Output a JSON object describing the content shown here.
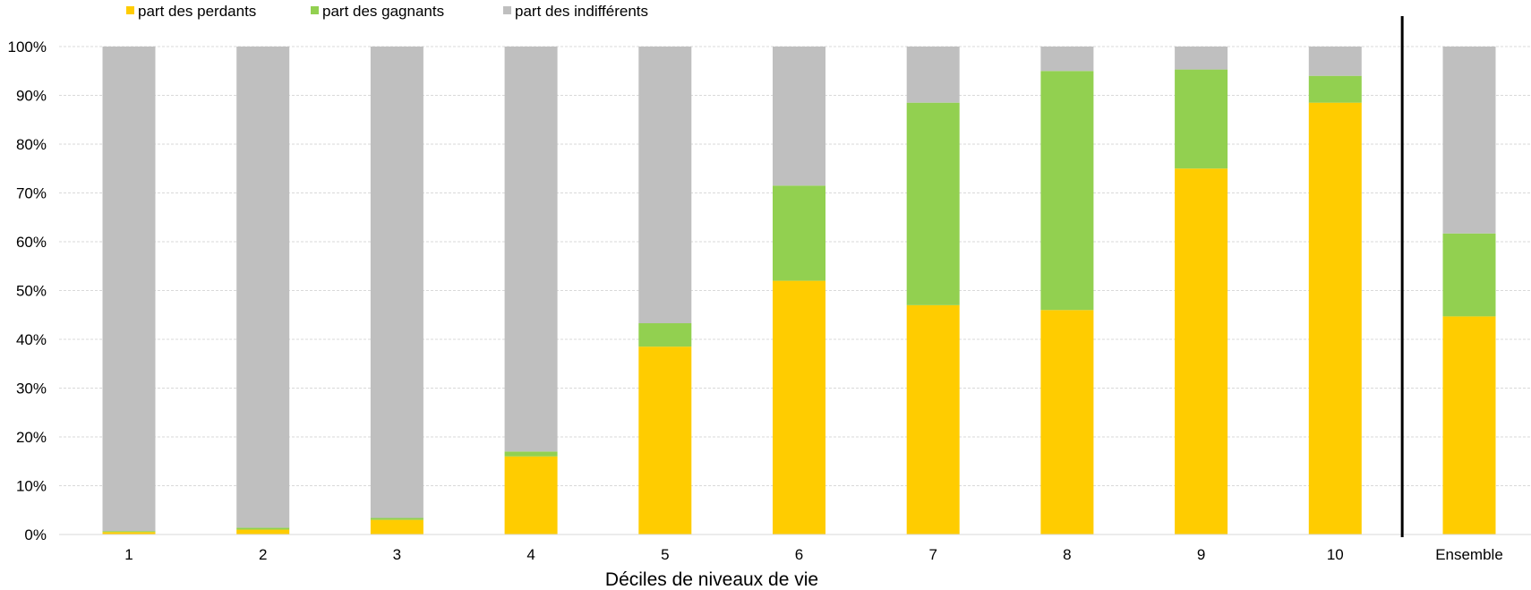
{
  "chart_data": {
    "type": "bar",
    "stacked": true,
    "categories": [
      "1",
      "2",
      "3",
      "4",
      "5",
      "6",
      "7",
      "8",
      "9",
      "10",
      "Ensemble"
    ],
    "series": [
      {
        "name": "part des perdants",
        "color": "#FFCC00",
        "values": [
          0.5,
          1.0,
          3.0,
          16.0,
          38.5,
          52.0,
          47.0,
          46.0,
          75.0,
          88.5,
          44.7
        ]
      },
      {
        "name": "part des gagnants",
        "color": "#92D050",
        "values": [
          0.2,
          0.4,
          0.4,
          1.0,
          4.8,
          19.5,
          41.5,
          49.0,
          20.3,
          5.5,
          17.0
        ]
      },
      {
        "name": "part des indifférents",
        "color": "#BFBFBF",
        "values": [
          99.3,
          98.6,
          96.6,
          83.0,
          56.7,
          28.5,
          11.5,
          5.0,
          4.7,
          6.0,
          38.3
        ]
      }
    ],
    "yticks": [
      "0%",
      "10%",
      "20%",
      "30%",
      "40%",
      "50%",
      "60%",
      "70%",
      "80%",
      "90%",
      "100%"
    ],
    "ylim": [
      0,
      100
    ],
    "xlabel": "Déciles de niveaux de vie",
    "ylabel": "",
    "grid": true,
    "legend_position": "top-left",
    "separator_before": "Ensemble"
  }
}
